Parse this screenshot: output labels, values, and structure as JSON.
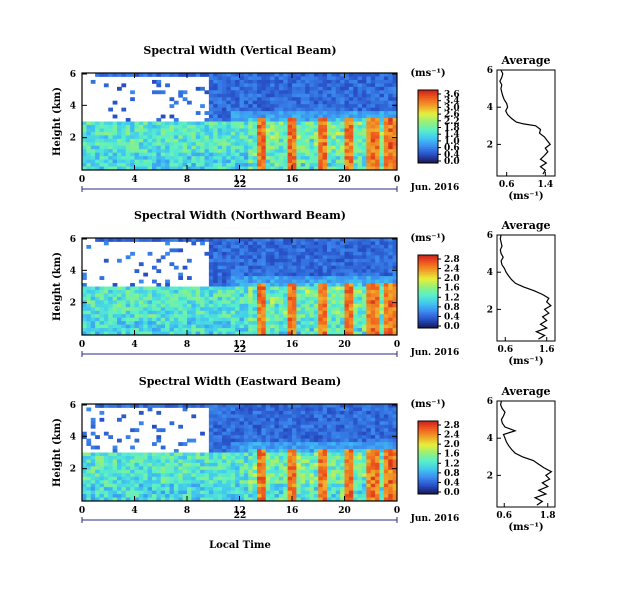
{
  "figure": {
    "xlabel": "Local Time",
    "date_label": "Jun. 2016",
    "day_label": "22",
    "unit_label": "(ms⁻¹)",
    "average_title": "Average"
  },
  "colormap": [
    "#1a1a55",
    "#2850c8",
    "#3c8cf0",
    "#40c8f0",
    "#5af0c8",
    "#96f078",
    "#e6f03c",
    "#f0a028",
    "#f05a1e",
    "#c81e1e"
  ],
  "chart_data": [
    {
      "type": "heatmap",
      "title": "Spectral Width (Vertical Beam)",
      "xlabel": "Local Time",
      "ylabel": "Height (km)",
      "x_range": [
        0,
        24
      ],
      "x_ticks": [
        "0",
        "4",
        "8",
        "12",
        "16",
        "20",
        "0"
      ],
      "y_range": [
        0,
        6
      ],
      "y_ticks": [
        "2",
        "4",
        "6"
      ],
      "colorbar": {
        "ticks": [
          "3.6",
          "3.4",
          "3.0",
          "2.6",
          "2.2",
          "1.8",
          "1.4",
          "1.0",
          "0.6",
          "0.4",
          "0.0"
        ],
        "max": 3.6
      },
      "average": {
        "xlabel": "(ms⁻¹)",
        "x_ticks": [
          "0.6",
          "1.4"
        ],
        "x_range": [
          0.4,
          1.6
        ],
        "y_ticks": [
          "2",
          "4",
          "6"
        ],
        "y_range": [
          0.3,
          6
        ],
        "profile": [
          [
            1.35,
            0.4
          ],
          [
            1.4,
            0.6
          ],
          [
            1.3,
            0.8
          ],
          [
            1.42,
            1.0
          ],
          [
            1.3,
            1.2
          ],
          [
            1.38,
            1.4
          ],
          [
            1.45,
            1.6
          ],
          [
            1.4,
            1.8
          ],
          [
            1.5,
            2.0
          ],
          [
            1.44,
            2.2
          ],
          [
            1.38,
            2.4
          ],
          [
            1.28,
            2.6
          ],
          [
            1.3,
            2.8
          ],
          [
            1.2,
            3.0
          ],
          [
            0.95,
            3.1
          ],
          [
            0.8,
            3.2
          ],
          [
            0.7,
            3.4
          ],
          [
            0.62,
            3.6
          ],
          [
            0.58,
            3.8
          ],
          [
            0.62,
            4.0
          ],
          [
            0.6,
            4.2
          ],
          [
            0.55,
            4.4
          ],
          [
            0.52,
            4.6
          ],
          [
            0.5,
            4.8
          ],
          [
            0.48,
            5.0
          ],
          [
            0.5,
            5.2
          ],
          [
            0.46,
            5.4
          ],
          [
            0.5,
            5.6
          ],
          [
            0.52,
            5.8
          ],
          [
            0.48,
            6.0
          ]
        ]
      }
    },
    {
      "type": "heatmap",
      "title": "Spectral Width (Northward Beam)",
      "xlabel": "Local Time",
      "ylabel": "Height (km)",
      "x_range": [
        0,
        24
      ],
      "x_ticks": [
        "0",
        "4",
        "8",
        "12",
        "16",
        "20",
        "0"
      ],
      "y_range": [
        0,
        6
      ],
      "y_ticks": [
        "2",
        "4",
        "6"
      ],
      "colorbar": {
        "ticks": [
          "2.8",
          "2.4",
          "2.0",
          "1.6",
          "1.2",
          "0.8",
          "0.4",
          "0.0"
        ],
        "max": 2.8
      },
      "average": {
        "xlabel": "(ms⁻¹)",
        "x_ticks": [
          "0.6",
          "1.6"
        ],
        "x_range": [
          0.4,
          1.8
        ],
        "y_ticks": [
          "2",
          "4",
          "6"
        ],
        "y_range": [
          0.3,
          6
        ],
        "profile": [
          [
            1.4,
            0.4
          ],
          [
            1.55,
            0.6
          ],
          [
            1.35,
            0.8
          ],
          [
            1.6,
            1.0
          ],
          [
            1.45,
            1.2
          ],
          [
            1.6,
            1.4
          ],
          [
            1.5,
            1.6
          ],
          [
            1.65,
            1.8
          ],
          [
            1.55,
            2.0
          ],
          [
            1.7,
            2.2
          ],
          [
            1.6,
            2.4
          ],
          [
            1.65,
            2.6
          ],
          [
            1.5,
            2.8
          ],
          [
            1.3,
            3.0
          ],
          [
            1.05,
            3.2
          ],
          [
            0.85,
            3.4
          ],
          [
            0.75,
            3.6
          ],
          [
            0.68,
            3.8
          ],
          [
            0.62,
            4.0
          ],
          [
            0.58,
            4.2
          ],
          [
            0.52,
            4.4
          ],
          [
            0.5,
            4.6
          ],
          [
            0.55,
            4.8
          ],
          [
            0.5,
            5.0
          ],
          [
            0.48,
            5.2
          ],
          [
            0.52,
            5.4
          ],
          [
            0.5,
            5.6
          ],
          [
            0.48,
            5.8
          ],
          [
            0.5,
            6.0
          ]
        ]
      }
    },
    {
      "type": "heatmap",
      "title": "Spectral Width (Eastward Beam)",
      "xlabel": "Local Time",
      "ylabel": "Height (km)",
      "x_range": [
        0,
        24
      ],
      "x_ticks": [
        "0",
        "4",
        "8",
        "12",
        "16",
        "20",
        "0"
      ],
      "y_range": [
        0,
        6
      ],
      "y_ticks": [
        "2",
        "4",
        "6"
      ],
      "colorbar": {
        "ticks": [
          "2.8",
          "2.4",
          "2.0",
          "1.6",
          "1.2",
          "0.8",
          "0.4",
          "0.0"
        ],
        "max": 2.8
      },
      "average": {
        "xlabel": "(ms⁻¹)",
        "x_ticks": [
          "0.6",
          "1.8"
        ],
        "x_range": [
          0.4,
          2.0
        ],
        "y_ticks": [
          "2",
          "4",
          "6"
        ],
        "y_range": [
          0.3,
          6
        ],
        "profile": [
          [
            1.5,
            0.4
          ],
          [
            1.65,
            0.6
          ],
          [
            1.45,
            0.8
          ],
          [
            1.75,
            1.0
          ],
          [
            1.55,
            1.2
          ],
          [
            1.8,
            1.4
          ],
          [
            1.65,
            1.6
          ],
          [
            1.85,
            1.8
          ],
          [
            1.75,
            2.0
          ],
          [
            1.9,
            2.2
          ],
          [
            1.7,
            2.4
          ],
          [
            1.55,
            2.6
          ],
          [
            1.4,
            2.8
          ],
          [
            1.1,
            3.0
          ],
          [
            0.9,
            3.2
          ],
          [
            0.8,
            3.4
          ],
          [
            0.72,
            3.6
          ],
          [
            0.66,
            3.8
          ],
          [
            0.62,
            4.0
          ],
          [
            0.58,
            4.2
          ],
          [
            0.9,
            4.4
          ],
          [
            0.62,
            4.6
          ],
          [
            0.55,
            4.8
          ],
          [
            0.52,
            5.0
          ],
          [
            0.58,
            5.2
          ],
          [
            0.62,
            5.4
          ],
          [
            0.54,
            5.6
          ],
          [
            0.5,
            5.8
          ],
          [
            0.52,
            6.0
          ]
        ]
      }
    }
  ]
}
